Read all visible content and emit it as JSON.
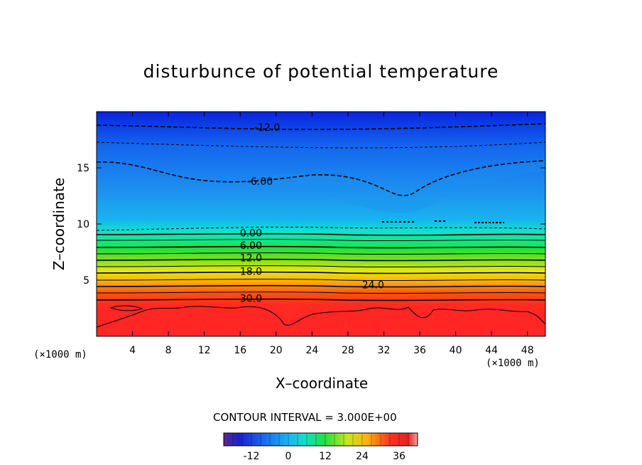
{
  "chart_data": {
    "type": "contour",
    "title": "disturbunce of potential temperature",
    "xlabel": "X–coordinate",
    "ylabel": "Z–coordinate",
    "x_unit": "(×1000 m)",
    "y_unit": "(×1000 m)",
    "xlim": [
      0,
      50
    ],
    "ylim": [
      0,
      20
    ],
    "x_ticks": [
      4,
      8,
      12,
      16,
      20,
      24,
      28,
      32,
      36,
      40,
      44,
      48
    ],
    "y_ticks": [
      5,
      10,
      15
    ],
    "contour_interval_text": "CONTOUR INTERVAL = 3.000E+00",
    "contour_interval": 3,
    "contour_labels": [
      {
        "text": "-12.0",
        "x": 19,
        "z": 18.6
      },
      {
        "text": "-6.00",
        "x": 18.2,
        "z": 13.8
      },
      {
        "text": "0.00",
        "x": 17.2,
        "z": 9.2
      },
      {
        "text": "6.00",
        "x": 17.2,
        "z": 8.1
      },
      {
        "text": "12.0",
        "x": 17.2,
        "z": 7.0
      },
      {
        "text": "18.0",
        "x": 17.2,
        "z": 5.8
      },
      {
        "text": "24.0",
        "x": 30.8,
        "z": 4.6
      },
      {
        "text": "30.0",
        "x": 17.2,
        "z": 3.4
      }
    ],
    "colorbar": {
      "ticks": [
        "-12",
        "0",
        "12",
        "24",
        "36"
      ],
      "tick_values": [
        -12,
        0,
        12,
        24,
        36
      ],
      "range": [
        -21,
        42
      ]
    }
  }
}
